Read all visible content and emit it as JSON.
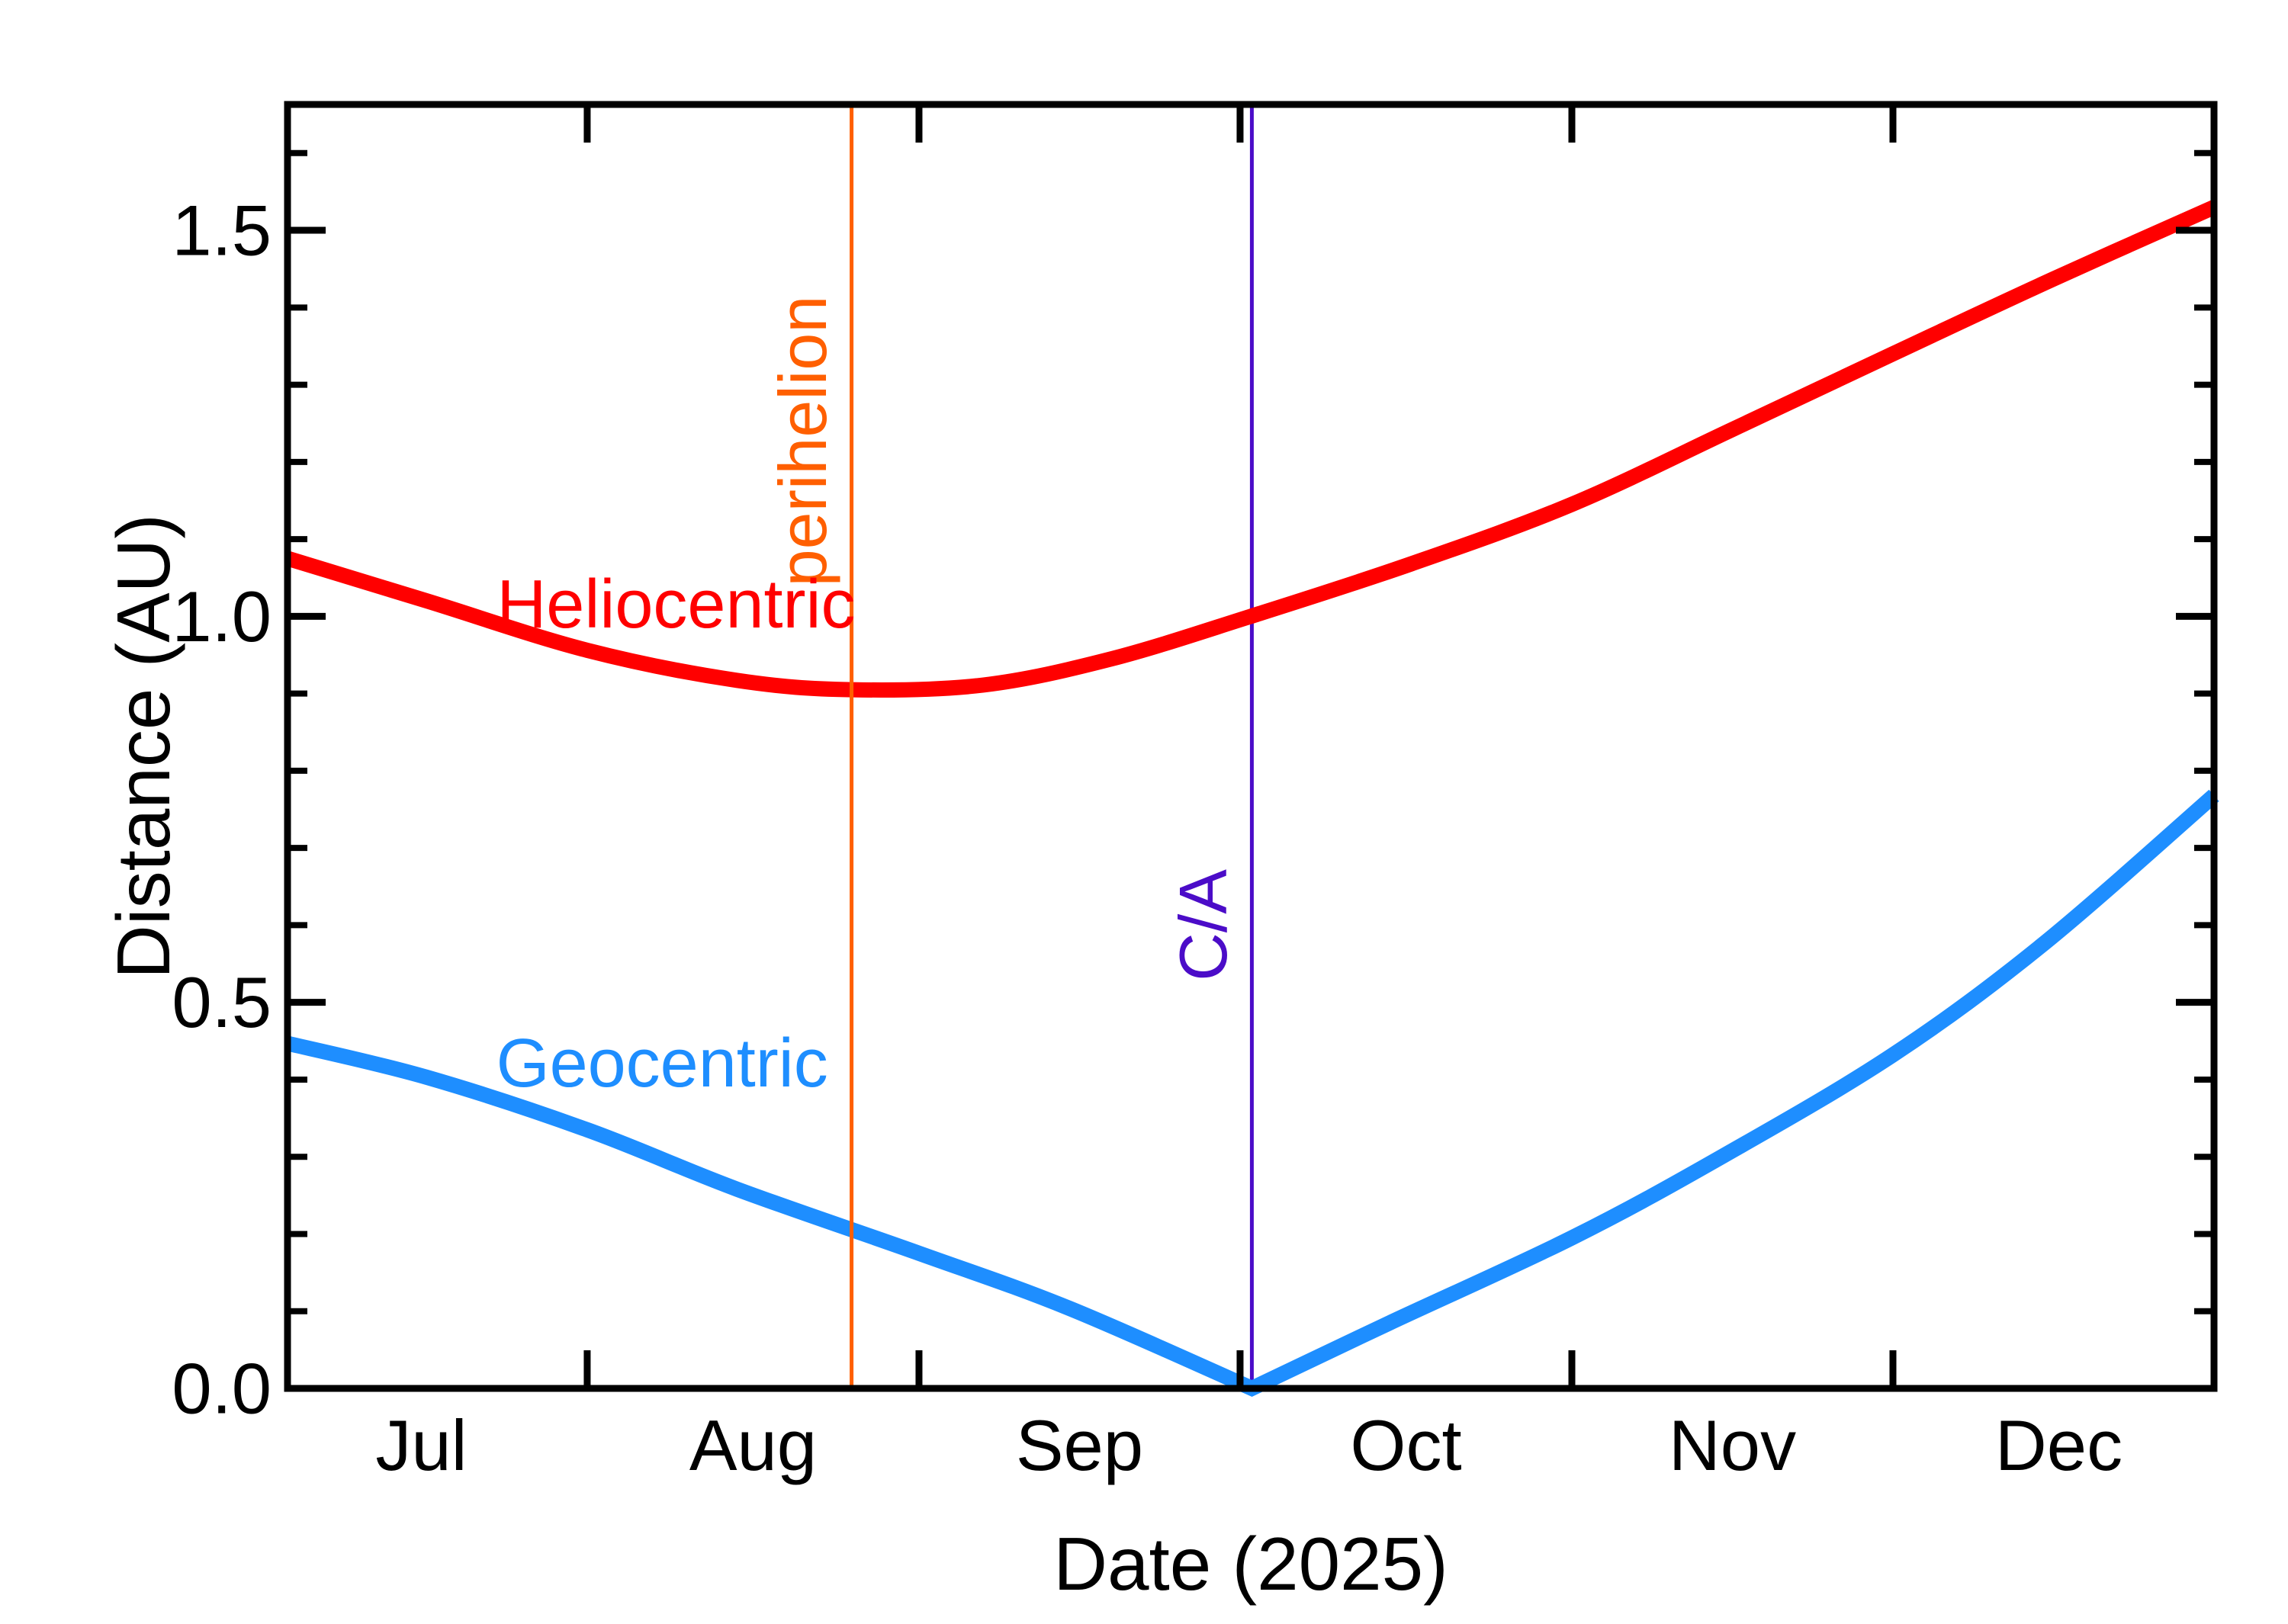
{
  "page": {
    "background": "#ffffff"
  },
  "chart_data": {
    "type": "line",
    "title": "",
    "xlabel": "Date (2025)",
    "ylabel": "Distance (AU)",
    "x_axis": {
      "year_shown": "2025",
      "range_days_since_jul1": [
        3,
        183
      ],
      "month_boundary_ticks": [
        {
          "month": "Aug",
          "day": 31
        },
        {
          "month": "Sep",
          "day": 62
        },
        {
          "month": "Oct",
          "day": 92
        },
        {
          "month": "Nov",
          "day": 123
        },
        {
          "month": "Dec",
          "day": 153
        }
      ],
      "month_labels": [
        {
          "text": "Jul",
          "day": 15.5
        },
        {
          "text": "Aug",
          "day": 46.5
        },
        {
          "text": "Sep",
          "day": 77
        },
        {
          "text": "Oct",
          "day": 107.5
        },
        {
          "text": "Nov",
          "day": 138
        },
        {
          "text": "Dec",
          "day": 168.5
        }
      ]
    },
    "y_axis": {
      "min": 0.0,
      "max": 1.663,
      "minor_step": 0.1,
      "major_ticks": [
        {
          "text": "0.0",
          "value": 0.0
        },
        {
          "text": "0.5",
          "value": 0.5
        },
        {
          "text": "1.0",
          "value": 1.0
        },
        {
          "text": "1.5",
          "value": 1.5
        }
      ]
    },
    "series": [
      {
        "name": "Heliocentric",
        "color": "#ff0000",
        "points": [
          [
            3,
            1.075
          ],
          [
            16,
            1.02
          ],
          [
            31,
            0.956
          ],
          [
            45,
            0.917
          ],
          [
            55.7,
            0.905
          ],
          [
            68,
            0.911
          ],
          [
            80,
            0.945
          ],
          [
            93,
            1.0
          ],
          [
            108,
            1.068
          ],
          [
            123,
            1.145
          ],
          [
            138,
            1.242
          ],
          [
            153,
            1.34
          ],
          [
            168,
            1.437
          ],
          [
            183,
            1.53
          ]
        ]
      },
      {
        "name": "Geocentric",
        "color": "#1e8eff",
        "segments": [
          [
            [
              3,
              0.447
            ],
            [
              16,
              0.403
            ],
            [
              31,
              0.335
            ],
            [
              45,
              0.258
            ],
            [
              62,
              0.175
            ],
            [
              76,
              0.104
            ],
            [
              93.1,
              0.0
            ]
          ],
          [
            [
              93.1,
              0.0
            ],
            [
              106,
              0.085
            ],
            [
              123,
              0.195
            ],
            [
              137,
              0.3
            ],
            [
              153,
              0.432
            ],
            [
              167,
              0.575
            ],
            [
              183,
              0.768
            ]
          ]
        ]
      }
    ],
    "annotations": [
      {
        "kind": "vline",
        "text": "perihelion",
        "day": 55.7,
        "label_au": 1.227,
        "color": "#ff5f00",
        "layer": "front"
      },
      {
        "kind": "vline",
        "text": "C/A",
        "day": 93.1,
        "label_au": 0.6,
        "color": "#4b0cc8",
        "layer": "back"
      }
    ],
    "series_labels": [
      {
        "text": "Heliocentric",
        "day": 39.3,
        "au": 1.015,
        "color": "#ff0000"
      },
      {
        "text": "Geocentric",
        "day": 38.0,
        "au": 0.4205,
        "color": "#1e8eff"
      }
    ]
  }
}
